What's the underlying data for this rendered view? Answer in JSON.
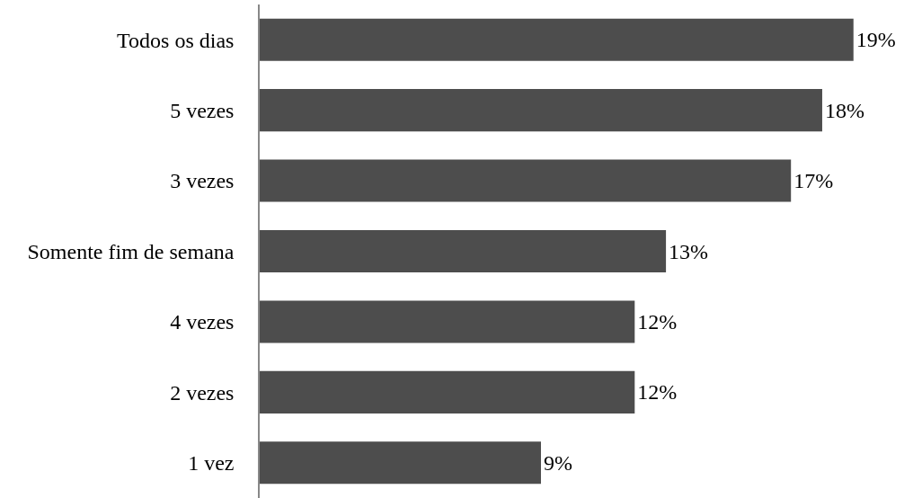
{
  "chart_data": {
    "type": "bar",
    "orientation": "horizontal",
    "categories": [
      "Todos os dias",
      "5 vezes",
      "3 vezes",
      "Somente fim de semana",
      "4 vezes",
      "2 vezes",
      "1 vez"
    ],
    "values": [
      19,
      18,
      17,
      13,
      12,
      12,
      9
    ],
    "value_labels": [
      "19%",
      "18%",
      "17%",
      "13%",
      "12%",
      "12%",
      "9%"
    ],
    "color": "#4d4d4d"
  }
}
